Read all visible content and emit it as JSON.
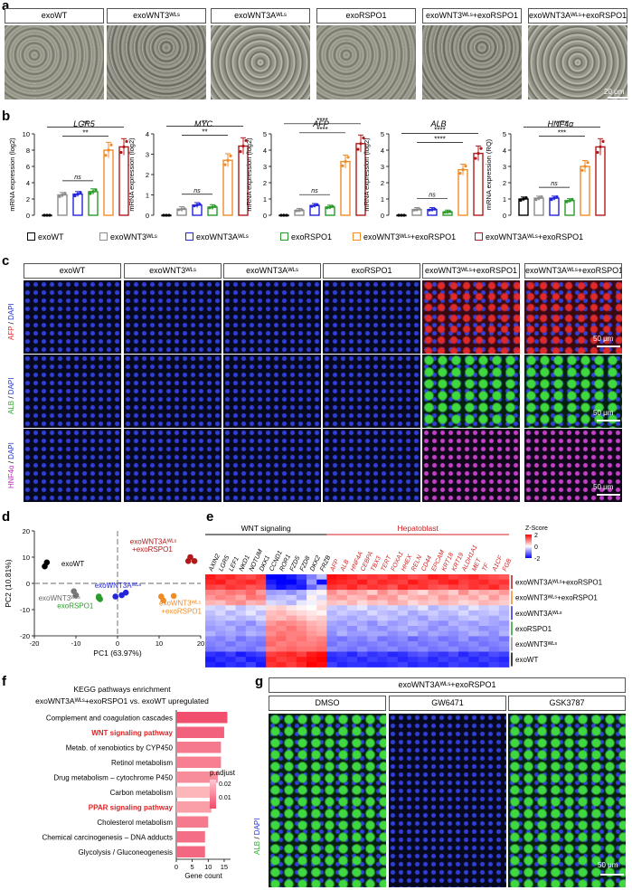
{
  "panels": {
    "a": "a",
    "b": "b",
    "c": "c",
    "d": "d",
    "e": "e",
    "f": "f",
    "g": "g"
  },
  "conditions": [
    "exoWT",
    "exoWNT3ᵂᴸˢ",
    "exoWNT3Aᵂᴸˢ",
    "exoRSPO1",
    "exoWNT3ᵂᴸˢ+exoRSPO1",
    "exoWNT3Aᵂᴸˢ+exoRSPO1"
  ],
  "panel_a": {
    "scale_bar": "20 μm"
  },
  "panel_b": {
    "legend": [
      "exoWT",
      "exoWNT3ᵂᴸˢ",
      "exoWNT3Aᵂᴸˢ",
      "exoRSPO1",
      "exoWNT3ᵂᴸˢ+exoRSPO1",
      "exoWNT3Aᵂᴸˢ+exoRSPO1"
    ],
    "colors": {
      "exoWT": "#000000",
      "exoWNT3": "#8c8c8c",
      "exoWNT3A": "#2424d8",
      "exoRSPO1": "#2a9a2a",
      "combo3": "#f08c28",
      "combo3A": "#b01a1a"
    }
  },
  "panel_c": {
    "row_labels": [
      {
        "marker": "AFP",
        "sep": " / ",
        "dapi": "DAPI",
        "marker_color": "#e02a2a"
      },
      {
        "marker": "ALB",
        "sep": " / ",
        "dapi": "DAPI",
        "marker_color": "#2fa82f"
      },
      {
        "marker": "HNF4α",
        "sep": " / ",
        "dapi": "DAPI",
        "marker_color": "#c02ac0"
      }
    ],
    "scale_bar": "50 μm"
  },
  "panel_d": {
    "xlabel": "PC1 (63.97%)",
    "ylabel": "PC2 (10.81%)",
    "labels": {
      "exoWT": "exoWT",
      "exoWNT3": "exoWNT3ᵂᴸˢ",
      "exoWNT3A": "exoWNT3Aᵂᴸˢ",
      "exoRSPO1": "exoRSPO1",
      "combo3_line1": "exoWNT3ᵂᴸˢ",
      "combo3_line2": "+exoRSPO1",
      "combo3A_line1": "exoWNT3Aᵂᴸˢ",
      "combo3A_line2": "+exoRSPO1"
    }
  },
  "panel_e": {
    "group_wnt": "WNT signaling",
    "group_hep": "Hepatoblast",
    "zscore_title": "Z-Score",
    "zscore_ticks": [
      "2",
      "0",
      "-2"
    ],
    "wnt_genes": [
      "AXIN2",
      "LGR5",
      "LEF1",
      "NKD1",
      "NOTUM",
      "DKK1",
      "CCND1",
      "ROR1",
      "FZD5",
      "FZD8",
      "DKK2",
      "FRZB"
    ],
    "hep_genes": [
      "AFP",
      "ALB",
      "HNF4A",
      "CEBPA",
      "TBX3",
      "TERT",
      "FOXA1",
      "HHEX",
      "RELN",
      "CD44",
      "EPCAM",
      "KRT18",
      "KRT19",
      "ALDH1A1",
      "MET",
      "TF",
      "A1CF",
      "FGB"
    ],
    "row_labels": [
      "exoWNT3Aᵂᴸˢ+exoRSPO1",
      "exoWNT3ᵂᴸˢ+exoRSPO1",
      "exoWNT3Aᵂᴸˢ",
      "exoRSPO1",
      "exoWNT3ᵂᴸˢ",
      "exoWT"
    ]
  },
  "panel_f": {
    "title_line1": "KEGG pathways enrichment",
    "title_line2": "exoWNT3Aᵂᴸˢ+exoRSPO1 vs. exoWT upregulated",
    "xlabel": "Gene count",
    "legend_title": "p.adjust",
    "legend_ticks": [
      "0.02",
      "0.01"
    ],
    "x_ticks": [
      "0",
      "5",
      "10",
      "15"
    ]
  },
  "panel_g": {
    "header": "exoWNT3Aᵂᴸˢ+exoRSPO1",
    "columns": [
      "DMSO",
      "GW6471",
      "GSK3787"
    ],
    "row_label_marker": "ALB",
    "row_label_sep": " / ",
    "row_label_dapi": "DAPI",
    "scale_bar": "50 μm"
  },
  "chart_data": [
    {
      "type": "bar",
      "title": "LGR5",
      "ylabel": "mRNA expression (log2)",
      "ylim": [
        0,
        10
      ],
      "categories": [
        "exoWT",
        "exoWNT3ᵂᴸˢ",
        "exoWNT3Aᵂᴸˢ",
        "exoRSPO1",
        "exoWNT3ᵂᴸˢ+exoRSPO1",
        "exoWNT3Aᵂᴸˢ+exoRSPO1"
      ],
      "values": [
        0,
        2.5,
        2.6,
        2.9,
        8.0,
        8.4
      ],
      "annotations": [
        "ns",
        "**",
        "**"
      ]
    },
    {
      "type": "bar",
      "title": "MYC",
      "ylabel": "mRNA expression (log2)",
      "ylim": [
        0,
        4
      ],
      "categories": [
        "exoWT",
        "exoWNT3ᵂᴸˢ",
        "exoWNT3Aᵂᴸˢ",
        "exoRSPO1",
        "exoWNT3ᵂᴸˢ+exoRSPO1",
        "exoWNT3Aᵂᴸˢ+exoRSPO1"
      ],
      "values": [
        0,
        0.3,
        0.5,
        0.4,
        2.7,
        3.4
      ],
      "annotations": [
        "ns",
        "**",
        "**"
      ]
    },
    {
      "type": "bar",
      "title": "AFP",
      "ylabel": "mRNA expression (log2)",
      "ylim": [
        0,
        5
      ],
      "categories": [
        "exoWT",
        "exoWNT3ᵂᴸˢ",
        "exoWNT3Aᵂᴸˢ",
        "exoRSPO1",
        "exoWNT3ᵂᴸˢ+exoRSPO1",
        "exoWNT3Aᵂᴸˢ+exoRSPO1"
      ],
      "values": [
        0,
        0.3,
        0.6,
        0.5,
        3.3,
        4.4
      ],
      "annotations": [
        "ns",
        "****",
        "****"
      ]
    },
    {
      "type": "bar",
      "title": "ALB",
      "ylabel": "mRNA expression (log2)",
      "ylim": [
        0,
        5
      ],
      "categories": [
        "exoWT",
        "exoWNT3ᵂᴸˢ",
        "exoWNT3Aᵂᴸˢ",
        "exoRSPO1",
        "exoWNT3ᵂᴸˢ+exoRSPO1",
        "exoWNT3Aᵂᴸˢ+exoRSPO1"
      ],
      "values": [
        0,
        0.35,
        0.35,
        0.2,
        2.8,
        3.8
      ],
      "annotations": [
        "ns",
        "****",
        "****"
      ]
    },
    {
      "type": "bar",
      "title": "HNF4α",
      "ylabel": "mRNA expression (RQ)",
      "ylim": [
        0,
        5
      ],
      "categories": [
        "exoWT",
        "exoWNT3ᵂᴸˢ",
        "exoWNT3Aᵂᴸˢ",
        "exoRSPO1",
        "exoWNT3ᵂᴸˢ+exoRSPO1",
        "exoWNT3Aᵂᴸˢ+exoRSPO1"
      ],
      "values": [
        1.0,
        1.05,
        1.05,
        0.9,
        3.0,
        4.2
      ],
      "annotations": [
        "ns",
        "***",
        "****"
      ]
    },
    {
      "type": "scatter",
      "title": "",
      "xlabel": "PC1 (63.97%)",
      "ylabel": "PC2 (10.81%)",
      "xlim": [
        -20,
        20
      ],
      "ylim": [
        -20,
        20
      ],
      "x_ticks": [
        "-20",
        "-10",
        "0",
        "10",
        "20"
      ],
      "y_ticks": [
        "-20",
        "-10",
        "0",
        "10",
        "20"
      ],
      "series": [
        {
          "name": "exoWT",
          "color": "#000000",
          "points": [
            [
              -17,
              8
            ],
            [
              -17.5,
              6.5
            ]
          ]
        },
        {
          "name": "exoWNT3ᵂᴸˢ",
          "color": "#777777",
          "points": [
            [
              -10.5,
              -3
            ],
            [
              -10,
              -4.5
            ]
          ]
        },
        {
          "name": "exoRSPO1",
          "color": "#2a9a2a",
          "points": [
            [
              -4.5,
              -5
            ],
            [
              -4.5,
              -5.5
            ],
            [
              -4.2,
              -6
            ]
          ]
        },
        {
          "name": "exoWNT3Aᵂᴸˢ",
          "color": "#2424d8",
          "points": [
            [
              1,
              -4.5
            ],
            [
              2,
              -3.5
            ],
            [
              -0.5,
              -5
            ]
          ]
        },
        {
          "name": "exoWNT3ᵂᴸˢ+exoRSPO1",
          "color": "#f08c28",
          "points": [
            [
              10.5,
              -5
            ],
            [
              13.5,
              -4.8
            ],
            [
              11,
              -6.5
            ]
          ]
        },
        {
          "name": "exoWNT3Aᵂᴸˢ+exoRSPO1",
          "color": "#b01a1a",
          "points": [
            [
              17.5,
              10
            ],
            [
              17,
              8.5
            ],
            [
              18.5,
              8.5
            ]
          ]
        }
      ]
    },
    {
      "type": "heatmap",
      "title": "",
      "rows": [
        "exoWNT3Aᵂᴸˢ+exoRSPO1",
        "exoWNT3Aᵂᴸˢ+exoRSPO1",
        "exoWNT3Aᵂᴸˢ+exoRSPO1",
        "exoWNT3ᵂᴸˢ+exoRSPO1",
        "exoWNT3ᵂᴸˢ+exoRSPO1",
        "exoWNT3ᵂᴸˢ+exoRSPO1",
        "exoWNT3Aᵂᴸˢ",
        "exoWNT3Aᵂᴸˢ",
        "exoWNT3Aᵂᴸˢ",
        "exoRSPO1",
        "exoRSPO1",
        "exoRSPO1",
        "exoWNT3ᵂᴸˢ",
        "exoWNT3ᵂᴸˢ",
        "exoWNT3ᵂᴸˢ",
        "exoWT",
        "exoWT",
        "exoWT"
      ],
      "columns": [
        "AXIN2",
        "LGR5",
        "LEF1",
        "NKD1",
        "NOTUM",
        "DKK1",
        "CCND1",
        "ROR1",
        "FZD5",
        "FZD8",
        "DKK2",
        "FRZB",
        "AFP",
        "ALB",
        "HNF4A",
        "CEBPA",
        "TBX3",
        "TERT",
        "FOXA1",
        "HHEX",
        "RELN",
        "CD44",
        "EPCAM",
        "KRT18",
        "KRT19",
        "ALDH1A1",
        "MET",
        "TF",
        "A1CF",
        "FGB"
      ],
      "zlim": [
        -2,
        2
      ],
      "values": [
        [
          1.8,
          1.6,
          1.7,
          1.5,
          1.4,
          1.6,
          -2.0,
          -2.0,
          -1.8,
          -1.5,
          -1.0,
          -0.5,
          1.9,
          1.8,
          1.7,
          1.5,
          1.6,
          1.5,
          1.7,
          1.6,
          1.4,
          1.5,
          1.8,
          1.7,
          1.5,
          1.6,
          1.7,
          1.5,
          1.4,
          1.3
        ],
        [
          1.7,
          1.8,
          1.5,
          1.6,
          1.7,
          1.5,
          -1.8,
          -2.0,
          -2.0,
          -1.7,
          -0.8,
          -1.9,
          1.8,
          1.7,
          1.6,
          1.8,
          1.5,
          1.7,
          1.6,
          1.5,
          1.8,
          1.6,
          1.5,
          1.7,
          1.8,
          1.5,
          1.6,
          1.7,
          1.5,
          1.6
        ],
        [
          1.5,
          1.4,
          1.6,
          1.5,
          1.3,
          1.4,
          -1.6,
          -1.9,
          -1.7,
          -1.8,
          -1.2,
          -0.7,
          1.6,
          1.5,
          1.7,
          1.4,
          1.6,
          1.5,
          1.3,
          1.7,
          1.5,
          1.6,
          1.4,
          1.3,
          1.5,
          1.4,
          1.6,
          1.5,
          1.7,
          1.4
        ],
        [
          1.0,
          0.9,
          1.1,
          1.0,
          1.2,
          0.8,
          -0.8,
          -0.7,
          -0.9,
          -0.6,
          -0.2,
          0.1,
          0.9,
          0.6,
          0.8,
          0.7,
          0.4,
          0.9,
          0.6,
          0.8,
          0.5,
          0.3,
          0.7,
          0.6,
          0.4,
          0.9,
          0.5,
          0.7,
          0.6,
          0.8
        ],
        [
          0.8,
          1.0,
          0.9,
          0.7,
          1.1,
          1.0,
          -0.6,
          -0.5,
          -0.4,
          -0.7,
          0.1,
          -0.3,
          0.7,
          0.8,
          0.5,
          0.6,
          0.9,
          0.7,
          0.8,
          0.4,
          0.6,
          0.7,
          0.5,
          0.8,
          0.6,
          0.5,
          0.7,
          0.4,
          0.8,
          0.5
        ],
        [
          0.6,
          0.5,
          0.8,
          0.9,
          0.6,
          0.7,
          -0.3,
          -0.4,
          -0.6,
          -0.2,
          -0.1,
          0.2,
          0.5,
          0.4,
          0.6,
          0.3,
          0.5,
          0.4,
          0.7,
          0.6,
          0.3,
          0.5,
          0.4,
          0.6,
          0.5,
          0.3,
          0.4,
          0.6,
          0.5,
          0.4
        ],
        [
          -0.3,
          -0.4,
          -0.2,
          -0.5,
          -0.3,
          -0.2,
          0.3,
          0.4,
          0.2,
          0.1,
          0.0,
          0.3,
          -0.4,
          -0.5,
          -0.3,
          -0.2,
          -0.5,
          -0.4,
          -0.3,
          -0.5,
          -0.4,
          -0.2,
          -0.6,
          -0.4,
          -0.3,
          -0.5,
          -0.2,
          -0.4,
          -0.3,
          -0.5
        ],
        [
          -0.5,
          -0.3,
          -0.6,
          -0.4,
          -0.2,
          -0.5,
          0.5,
          0.6,
          0.4,
          0.3,
          0.2,
          0.1,
          -0.6,
          -0.4,
          -0.5,
          -0.6,
          -0.3,
          -0.5,
          -0.6,
          -0.4,
          -0.7,
          -0.5,
          -0.4,
          -0.6,
          -0.5,
          -0.3,
          -0.6,
          -0.5,
          -0.4,
          -0.6
        ],
        [
          -0.6,
          -0.5,
          -0.4,
          -0.6,
          -0.5,
          -0.3,
          0.6,
          0.5,
          0.7,
          0.5,
          0.3,
          0.4,
          -0.5,
          -0.6,
          -0.7,
          -0.5,
          -0.6,
          -0.4,
          -0.5,
          -0.7,
          -0.6,
          -0.8,
          -0.5,
          -0.6,
          -0.7,
          -0.5,
          -0.4,
          -0.6,
          -0.7,
          -0.5
        ],
        [
          -0.7,
          -0.6,
          -0.8,
          -0.7,
          -0.9,
          -0.6,
          0.8,
          1.0,
          0.9,
          0.8,
          0.6,
          0.5,
          -0.7,
          -0.8,
          -0.6,
          -0.7,
          -0.9,
          -0.6,
          -0.8,
          -0.7,
          -0.5,
          -0.6,
          -0.8,
          -0.9,
          -0.6,
          -0.7,
          -0.8,
          -0.6,
          -0.7,
          -0.8
        ],
        [
          -0.8,
          -0.7,
          -0.6,
          -0.9,
          -0.7,
          -0.8,
          1.0,
          0.9,
          1.1,
          0.9,
          0.7,
          0.6,
          -0.8,
          -0.7,
          -0.9,
          -0.6,
          -0.8,
          -0.9,
          -0.7,
          -0.6,
          -0.8,
          -0.7,
          -0.9,
          -0.7,
          -0.8,
          -0.6,
          -0.7,
          -0.9,
          -0.8,
          -0.7
        ],
        [
          -0.6,
          -0.8,
          -0.7,
          -0.8,
          -0.6,
          -0.7,
          0.9,
          1.1,
          1.0,
          1.0,
          0.8,
          0.7,
          -0.9,
          -0.6,
          -0.8,
          -0.8,
          -0.7,
          -0.7,
          -0.9,
          -0.8,
          -0.6,
          -0.9,
          -0.7,
          -0.8,
          -0.9,
          -0.8,
          -0.6,
          -0.7,
          -0.9,
          -0.6
        ],
        [
          -0.9,
          -1.0,
          -0.8,
          -1.1,
          -0.9,
          -1.0,
          1.1,
          1.2,
          1.0,
          1.1,
          0.9,
          1.0,
          -1.0,
          -1.1,
          -0.9,
          -1.0,
          -0.8,
          -1.1,
          -1.0,
          -0.9,
          -1.2,
          -1.0,
          -0.9,
          -1.1,
          -1.0,
          -0.8,
          -1.1,
          -1.0,
          -0.9,
          -1.1
        ],
        [
          -1.0,
          -0.9,
          -1.1,
          -0.9,
          -1.0,
          -1.1,
          1.2,
          1.0,
          1.1,
          1.0,
          1.0,
          1.1,
          -1.1,
          -0.9,
          -1.0,
          -1.1,
          -1.0,
          -0.9,
          -1.1,
          -1.0,
          -0.9,
          -1.1,
          -1.0,
          -0.9,
          -1.1,
          -1.0,
          -0.9,
          -1.1,
          -1.0,
          -0.9
        ],
        [
          -1.1,
          -1.0,
          -0.9,
          -1.0,
          -1.1,
          -0.9,
          1.0,
          1.1,
          1.2,
          1.1,
          1.1,
          1.2,
          -0.9,
          -1.0,
          -1.1,
          -0.9,
          -1.1,
          -1.0,
          -0.9,
          -1.1,
          -1.0,
          -0.9,
          -1.1,
          -1.0,
          -0.9,
          -1.1,
          -1.0,
          -0.9,
          -1.1,
          -1.0
        ],
        [
          -1.6,
          -1.7,
          -1.5,
          -1.8,
          -1.6,
          -1.5,
          1.5,
          1.6,
          1.7,
          1.5,
          1.8,
          1.9,
          -1.6,
          -1.5,
          -1.7,
          -1.4,
          -1.6,
          -1.5,
          -1.7,
          -1.6,
          -1.4,
          -1.3,
          -1.5,
          -1.6,
          -1.4,
          -1.7,
          -1.5,
          -1.6,
          -1.4,
          -1.5
        ],
        [
          -1.8,
          -1.6,
          -1.7,
          -1.5,
          -1.8,
          -1.7,
          1.7,
          1.5,
          1.6,
          1.8,
          1.9,
          2.0,
          -1.7,
          -1.6,
          -1.5,
          -1.7,
          -1.5,
          -1.6,
          -1.5,
          -1.7,
          -1.6,
          -1.5,
          -1.7,
          -1.5,
          -1.6,
          -1.5,
          -1.7,
          -1.5,
          -1.6,
          -1.7
        ],
        [
          -1.7,
          -1.8,
          -1.6,
          -1.7,
          -1.5,
          -1.8,
          1.6,
          1.7,
          1.5,
          1.7,
          2.0,
          1.9,
          -1.5,
          -1.7,
          -1.6,
          -1.6,
          -1.7,
          -1.7,
          -1.6,
          -1.5,
          -1.7,
          -1.6,
          -1.6,
          -1.7,
          -1.5,
          -1.6,
          -1.6,
          -1.7,
          -1.5,
          -1.6
        ]
      ]
    },
    {
      "type": "bar",
      "title": "KEGG pathways enrichment",
      "xlabel": "Gene count",
      "xlim": [
        0,
        17
      ],
      "orientation": "horizontal",
      "categories": [
        "Complement and coagulation cascades",
        "WNT signaling pathway",
        "Metab. of xenobiotics by CYP450",
        "Retinol metabolism",
        "Drug metabolism – cytochrome P450",
        "Carbon metabolism",
        "PPAR signaling pathway",
        "Cholesterol metabolism",
        "Chemical carcinogenesis – DNA adducts",
        "Glycolysis / Gluconeogenesis"
      ],
      "values": [
        16,
        15,
        14,
        14,
        13,
        11,
        11,
        10,
        9,
        9
      ],
      "p_adjust": [
        0.005,
        0.008,
        0.012,
        0.013,
        0.015,
        0.022,
        0.018,
        0.012,
        0.01,
        0.009
      ],
      "highlight": [
        "WNT signaling pathway",
        "PPAR signaling pathway"
      ],
      "highlight_color": "#e02020"
    }
  ]
}
